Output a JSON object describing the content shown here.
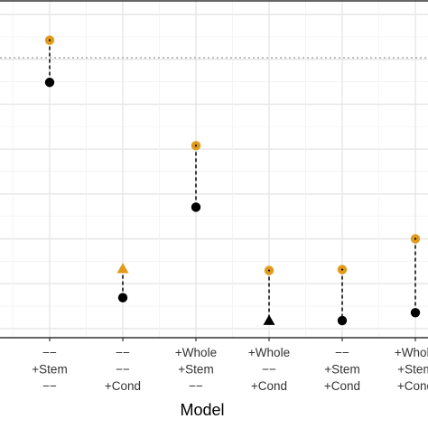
{
  "chart_data": {
    "type": "scatter",
    "xlabel": "Model",
    "ylabel": "",
    "categories": [
      [
        "",
        "",
        ""
      ],
      [
        "−−",
        "+Stem",
        "−−"
      ],
      [
        "−−",
        "−−",
        "+Cond"
      ],
      [
        "+Whole",
        "+Stem",
        "−−"
      ],
      [
        "+Whole",
        "−−",
        "+Cond"
      ],
      [
        "−−",
        "+Stem",
        "+Cond"
      ],
      [
        "+Whole",
        "+Stem",
        "+Cond"
      ]
    ],
    "ylim": [
      0.0,
      3.3
    ],
    "reference_line": 3.0,
    "grid": true,
    "series": [
      {
        "color": "#E09B1A",
        "values": [
          null,
          3.2,
          0.6,
          2.0,
          0.58,
          0.59,
          0.94
        ],
        "markers": [
          null,
          "circle",
          "triangle",
          "circle",
          "circle",
          "circle",
          "circle"
        ]
      },
      {
        "color": "#000000",
        "values": [
          null,
          2.72,
          0.27,
          1.3,
          0.01,
          0.01,
          0.1
        ],
        "markers": [
          null,
          "circle",
          "circle",
          "circle",
          "triangle",
          "circle",
          "circle"
        ]
      }
    ]
  }
}
